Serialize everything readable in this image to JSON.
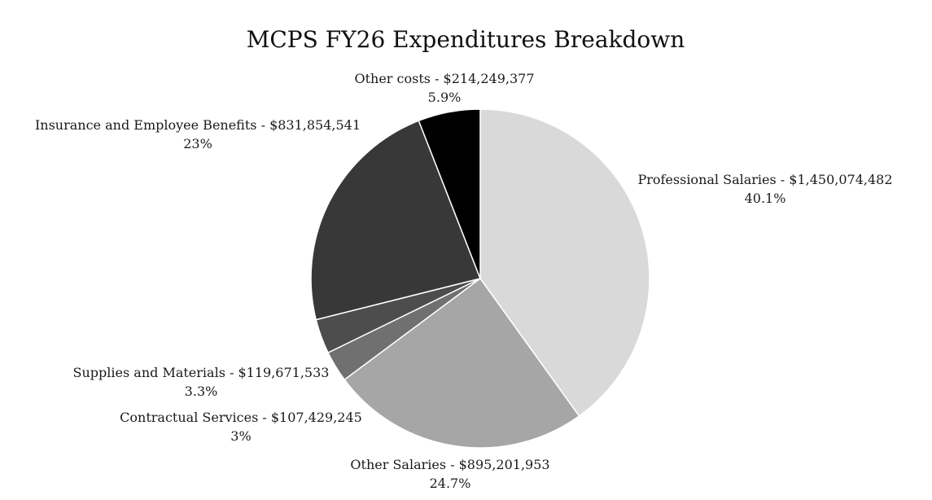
{
  "chart_data": {
    "type": "pie",
    "title": "MCPS FY26 Expenditures Breakdown",
    "slices": [
      {
        "label": "Professional Salaries - $1,450,074,482",
        "value": 1450074482,
        "percent_label": "40.1%",
        "color": "#d9d9d9"
      },
      {
        "label": "Other Salaries - $895,201,953",
        "value": 895201953,
        "percent_label": "24.7%",
        "color": "#a6a6a6"
      },
      {
        "label": "Contractual Services - $107,429,245",
        "value": 107429245,
        "percent_label": "3%",
        "color": "#707070"
      },
      {
        "label": "Supplies and Materials - $119,671,533",
        "value": 119671533,
        "percent_label": "3.3%",
        "color": "#4d4d4d"
      },
      {
        "label": "Insurance and Employee Benefits - $831,854,541",
        "value": 831854541,
        "percent_label": "23%",
        "color": "#383838"
      },
      {
        "label": "Other costs - $214,249,377",
        "value": 214249377,
        "percent_label": "5.9%",
        "color": "#000000"
      }
    ]
  }
}
